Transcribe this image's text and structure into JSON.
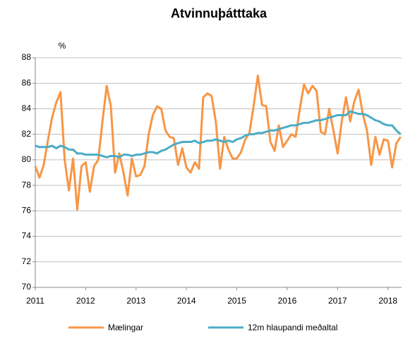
{
  "chart_data": {
    "type": "line",
    "title": "Atvinnuþátttaka",
    "y_label": "%",
    "x": [
      2011,
      2011.083,
      2011.167,
      2011.25,
      2011.333,
      2011.417,
      2011.5,
      2011.583,
      2011.667,
      2011.75,
      2011.833,
      2011.917,
      2012,
      2012.083,
      2012.167,
      2012.25,
      2012.333,
      2012.417,
      2012.5,
      2012.583,
      2012.667,
      2012.75,
      2012.833,
      2012.917,
      2013,
      2013.083,
      2013.167,
      2013.25,
      2013.333,
      2013.417,
      2013.5,
      2013.583,
      2013.667,
      2013.75,
      2013.833,
      2013.917,
      2014,
      2014.083,
      2014.167,
      2014.25,
      2014.333,
      2014.417,
      2014.5,
      2014.583,
      2014.667,
      2014.75,
      2014.833,
      2014.917,
      2015,
      2015.083,
      2015.167,
      2015.25,
      2015.333,
      2015.417,
      2015.5,
      2015.583,
      2015.667,
      2015.75,
      2015.833,
      2015.917,
      2016,
      2016.083,
      2016.167,
      2016.25,
      2016.333,
      2016.417,
      2016.5,
      2016.583,
      2016.667,
      2016.75,
      2016.833,
      2016.917,
      2017,
      2017.083,
      2017.167,
      2017.25,
      2017.333,
      2017.417,
      2017.5,
      2017.583,
      2017.667,
      2017.75,
      2017.833,
      2017.917,
      2018,
      2018.083,
      2018.167,
      2018.25
    ],
    "series": [
      {
        "name": "Mælingar",
        "color": "#f79646",
        "values": [
          79.5,
          78.6,
          79.6,
          81.5,
          83.3,
          84.5,
          85.3,
          80.0,
          77.6,
          80.1,
          76.1,
          79.5,
          79.8,
          77.5,
          79.5,
          80.0,
          83.0,
          85.8,
          84.2,
          79.0,
          80.5,
          79.0,
          77.2,
          80.1,
          78.7,
          78.8,
          79.5,
          82.0,
          83.5,
          84.2,
          84.0,
          82.3,
          81.8,
          81.7,
          79.6,
          80.9,
          79.4,
          79.0,
          79.8,
          79.3,
          84.9,
          85.2,
          85.0,
          83.0,
          79.3,
          81.8,
          80.8,
          80.1,
          80.1,
          80.6,
          81.6,
          82.1,
          84.2,
          86.6,
          84.3,
          84.2,
          81.4,
          80.7,
          82.7,
          81.0,
          81.5,
          82.0,
          81.8,
          84.0,
          85.9,
          85.2,
          85.8,
          85.4,
          82.2,
          82.0,
          84.0,
          82.3,
          80.5,
          83.0,
          84.9,
          83.0,
          84.6,
          85.5,
          83.6,
          82.3,
          79.6,
          81.8,
          80.4,
          81.6,
          81.5,
          79.4,
          81.3,
          81.8
        ]
      },
      {
        "name": "12m hlaupandi meðaltal",
        "color": "#4bacc6",
        "values": [
          81.1,
          81.0,
          81.0,
          81.0,
          81.1,
          80.9,
          81.1,
          81.0,
          80.8,
          80.8,
          80.5,
          80.5,
          80.4,
          80.4,
          80.4,
          80.4,
          80.3,
          80.2,
          80.3,
          80.3,
          80.2,
          80.4,
          80.4,
          80.3,
          80.4,
          80.4,
          80.5,
          80.6,
          80.6,
          80.5,
          80.7,
          80.8,
          81.0,
          81.2,
          81.3,
          81.4,
          81.4,
          81.4,
          81.5,
          81.3,
          81.4,
          81.5,
          81.5,
          81.6,
          81.5,
          81.4,
          81.5,
          81.4,
          81.6,
          81.7,
          81.9,
          82.0,
          82.0,
          82.1,
          82.1,
          82.2,
          82.3,
          82.3,
          82.4,
          82.5,
          82.6,
          82.7,
          82.7,
          82.8,
          82.9,
          82.9,
          83.0,
          83.1,
          83.1,
          83.2,
          83.3,
          83.4,
          83.5,
          83.5,
          83.5,
          83.8,
          83.7,
          83.6,
          83.6,
          83.5,
          83.3,
          83.1,
          83.0,
          82.8,
          82.7,
          82.7,
          82.3,
          82.0
        ]
      }
    ],
    "xlim": [
      2011,
      2018.27
    ],
    "xticks": [
      2011,
      2012,
      2013,
      2014,
      2015,
      2016,
      2017,
      2018
    ],
    "ylim": [
      70,
      88
    ],
    "yticks": [
      70,
      72,
      74,
      76,
      78,
      80,
      82,
      84,
      86,
      88
    ],
    "grid": true,
    "legend": "bottom"
  }
}
